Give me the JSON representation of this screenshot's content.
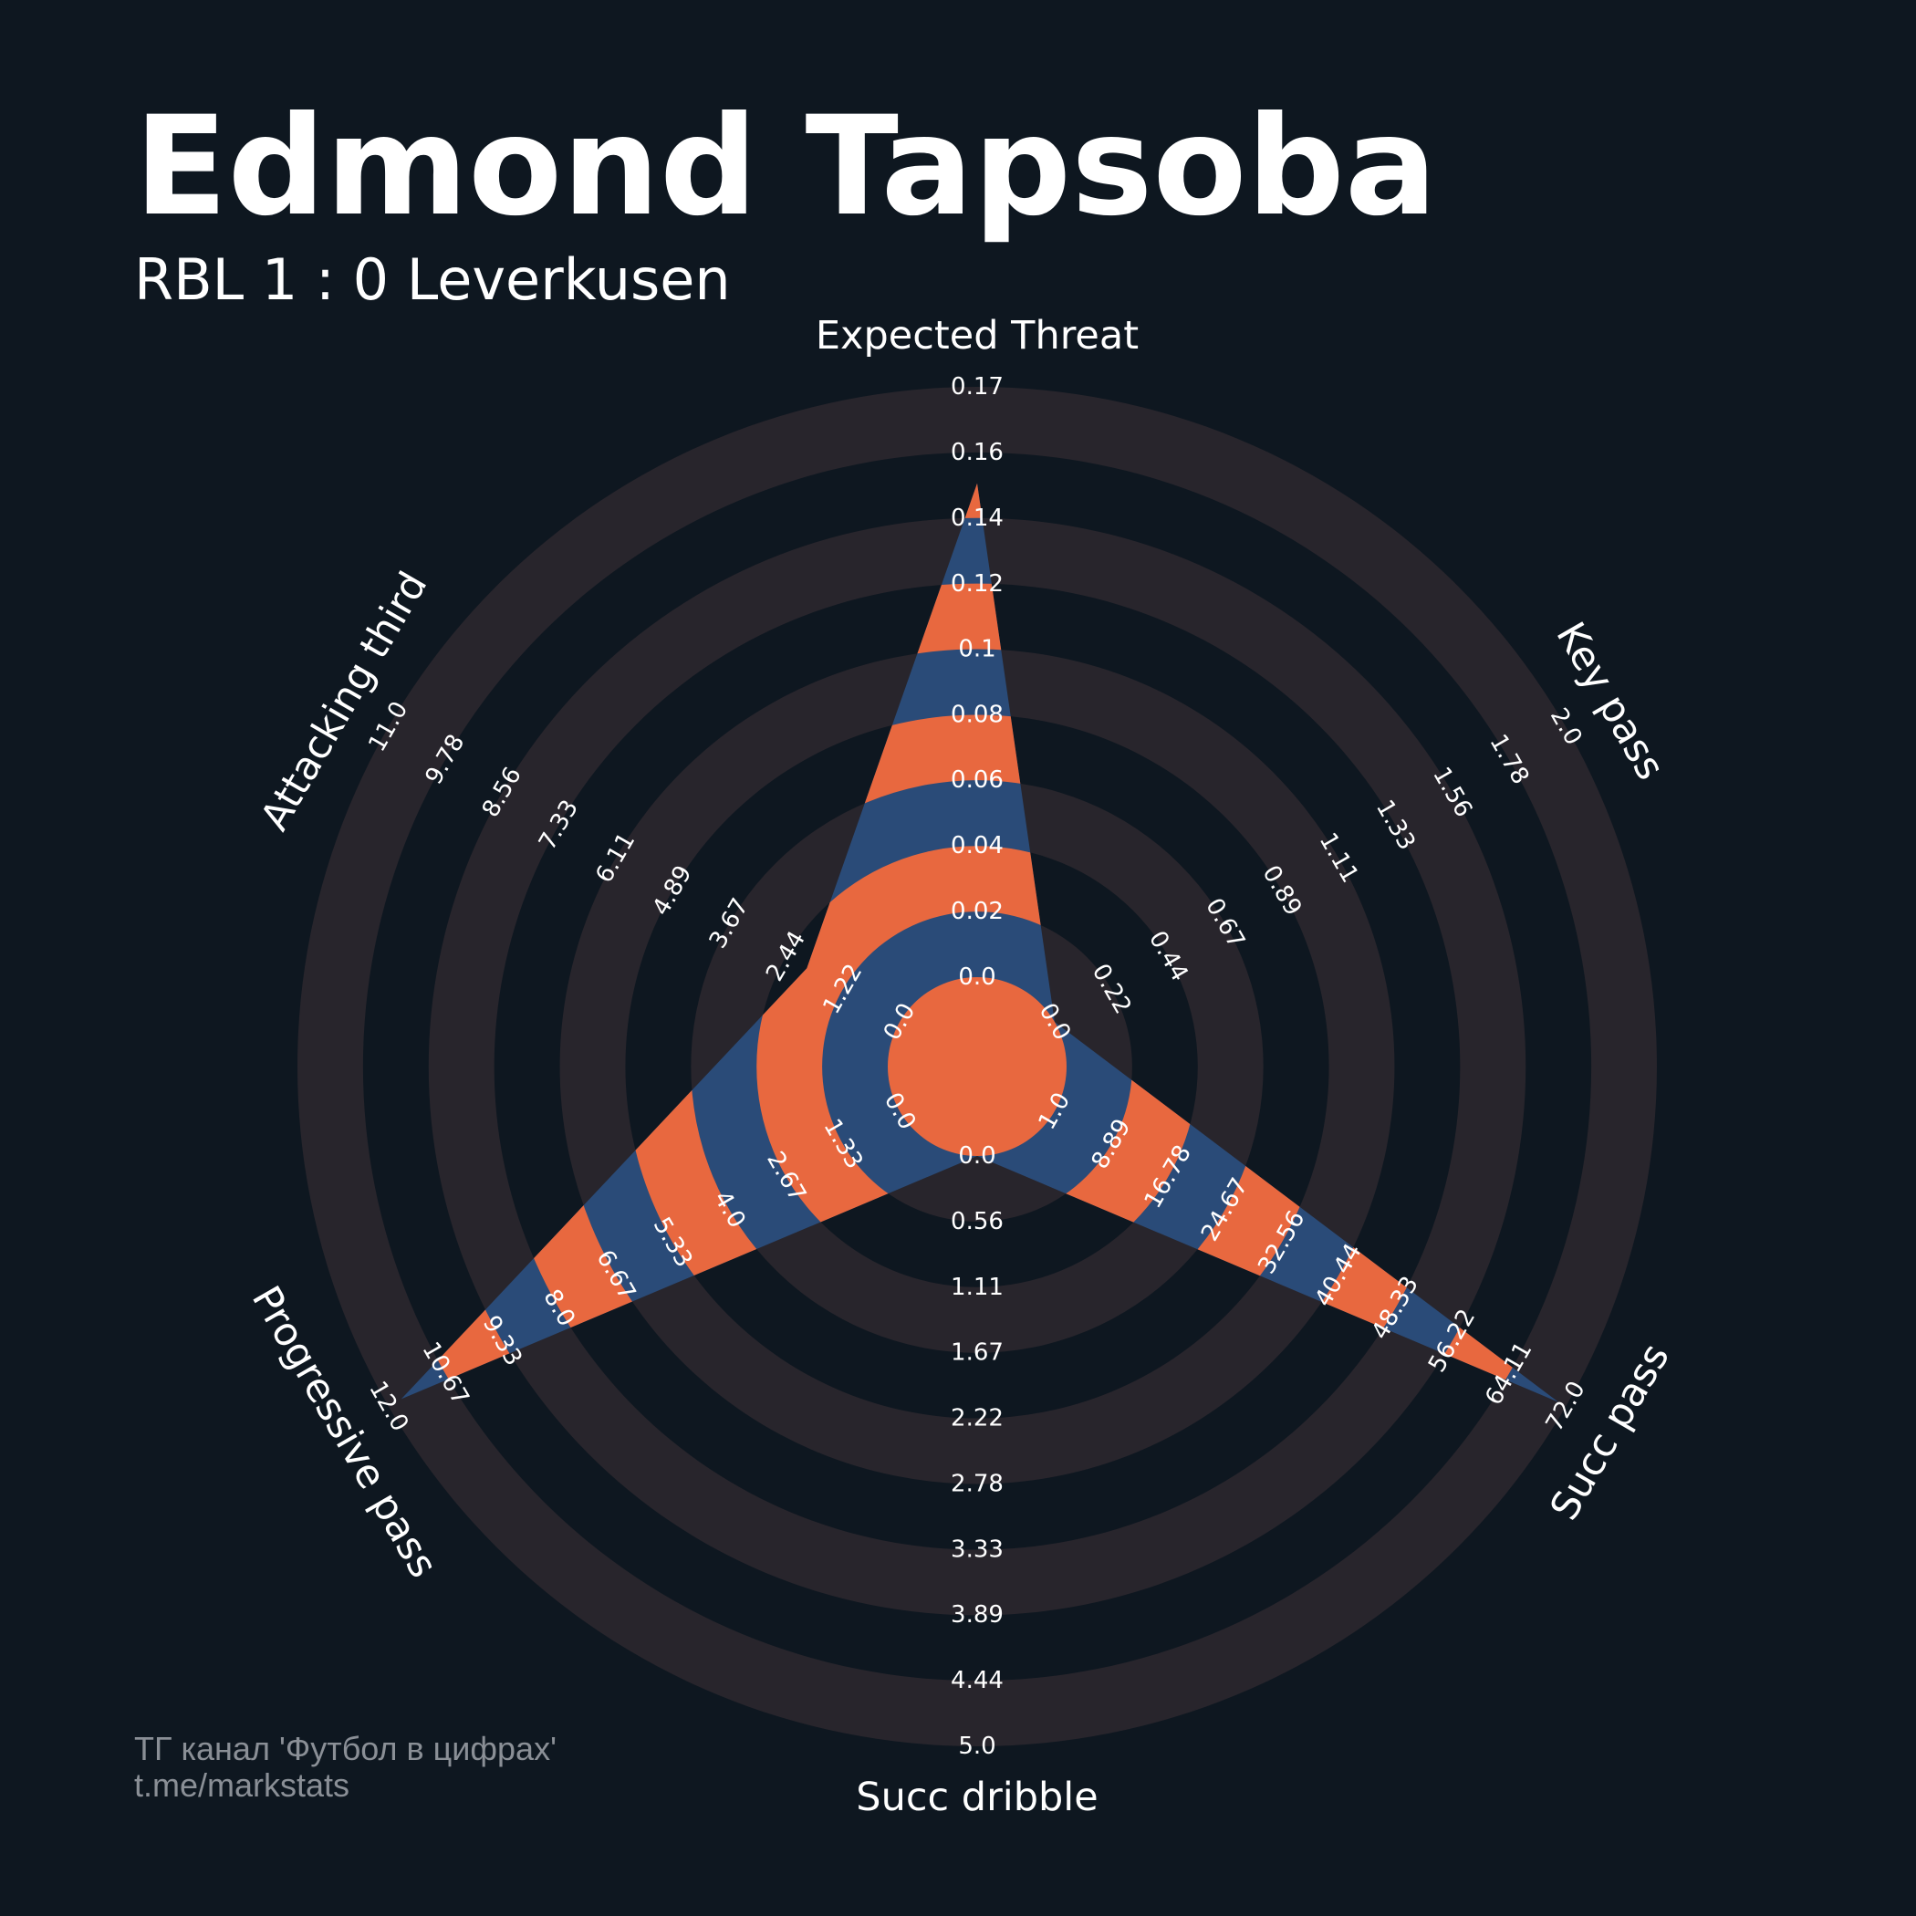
{
  "chart_data": {
    "type": "radar",
    "title": "Edmond Tapsoba",
    "subtitle": "RBL 1 : 0 Leverkusen",
    "footer_lines": [
      "ТГ канал 'Футбол в цифрах'",
      "t.me/markstats"
    ],
    "background_color": "#0e1720",
    "ring_color": "#28252c",
    "params": [
      {
        "name": "Expected Threat",
        "lim": [
          0,
          0.1745
        ],
        "ticks": [
          {
            "value": 0,
            "label": "0.0"
          },
          {
            "value": 0.0194,
            "label": "0.02"
          },
          {
            "value": 0.0388,
            "label": "0.04"
          },
          {
            "value": 0.0582,
            "label": "0.06"
          },
          {
            "value": 0.0776,
            "label": "0.08"
          },
          {
            "value": 0.0969,
            "label": "0.1"
          },
          {
            "value": 0.1163,
            "label": "0.12"
          },
          {
            "value": 0.1357,
            "label": "0.14"
          },
          {
            "value": 0.1551,
            "label": "0.16"
          },
          {
            "value": 0.1745,
            "label": "0.17"
          }
        ]
      },
      {
        "name": "Key pass",
        "lim": [
          0,
          2
        ],
        "ticks": [
          {
            "value": 0,
            "label": "0.0"
          },
          {
            "value": 0.2222,
            "label": "0.22"
          },
          {
            "value": 0.4444,
            "label": "0.44"
          },
          {
            "value": 0.6667,
            "label": "0.67"
          },
          {
            "value": 0.8889,
            "label": "0.89"
          },
          {
            "value": 1.1111,
            "label": "1.11"
          },
          {
            "value": 1.3333,
            "label": "1.33"
          },
          {
            "value": 1.5556,
            "label": "1.56"
          },
          {
            "value": 1.7778,
            "label": "1.78"
          },
          {
            "value": 2,
            "label": "2.0"
          }
        ]
      },
      {
        "name": "Succ pass",
        "lim": [
          1,
          72
        ],
        "ticks": [
          {
            "value": 1,
            "label": "1.0"
          },
          {
            "value": 8.8889,
            "label": "8.89"
          },
          {
            "value": 16.7778,
            "label": "16.78"
          },
          {
            "value": 24.6667,
            "label": "24.67"
          },
          {
            "value": 32.5556,
            "label": "32.56"
          },
          {
            "value": 40.4444,
            "label": "40.44"
          },
          {
            "value": 48.3333,
            "label": "48.33"
          },
          {
            "value": 56.2222,
            "label": "56.22"
          },
          {
            "value": 64.1111,
            "label": "64.11"
          },
          {
            "value": 72,
            "label": "72.0"
          }
        ]
      },
      {
        "name": "Succ dribble",
        "lim": [
          0,
          5
        ],
        "ticks": [
          {
            "value": 0,
            "label": "0.0"
          },
          {
            "value": 0.5556,
            "label": "0.56"
          },
          {
            "value": 1.1111,
            "label": "1.11"
          },
          {
            "value": 1.6667,
            "label": "1.67"
          },
          {
            "value": 2.2222,
            "label": "2.22"
          },
          {
            "value": 2.7778,
            "label": "2.78"
          },
          {
            "value": 3.3333,
            "label": "3.33"
          },
          {
            "value": 3.8889,
            "label": "3.89"
          },
          {
            "value": 4.4444,
            "label": "4.44"
          },
          {
            "value": 5,
            "label": "5.0"
          }
        ]
      },
      {
        "name": "Progressive pass",
        "lim": [
          0,
          12
        ],
        "ticks": [
          {
            "value": 0,
            "label": "0.0"
          },
          {
            "value": 1.3333,
            "label": "1.33"
          },
          {
            "value": 2.6667,
            "label": "2.67"
          },
          {
            "value": 4,
            "label": "4.0"
          },
          {
            "value": 5.3333,
            "label": "5.33"
          },
          {
            "value": 6.6667,
            "label": "6.67"
          },
          {
            "value": 8,
            "label": "8.0"
          },
          {
            "value": 9.3333,
            "label": "9.33"
          },
          {
            "value": 10.6667,
            "label": "10.67"
          },
          {
            "value": 12,
            "label": "12.0"
          }
        ]
      },
      {
        "name": "Attacking third",
        "lim": [
          0,
          11
        ],
        "ticks": [
          {
            "value": 0,
            "label": "0.0"
          },
          {
            "value": 1.2222,
            "label": "1.22"
          },
          {
            "value": 2.4444,
            "label": "2.44"
          },
          {
            "value": 3.6667,
            "label": "3.67"
          },
          {
            "value": 4.8889,
            "label": "4.89"
          },
          {
            "value": 6.1111,
            "label": "6.11"
          },
          {
            "value": 7.3333,
            "label": "7.33"
          },
          {
            "value": 8.5556,
            "label": "8.56"
          },
          {
            "value": 9.7778,
            "label": "9.78"
          },
          {
            "value": 11,
            "label": "11.0"
          }
        ]
      }
    ],
    "series": [
      {
        "values": [
          0.146,
          0,
          71,
          0,
          11.7,
          2.0
        ],
        "color": "#2a4b78",
        "stripe_color": "#e8683f"
      }
    ]
  }
}
